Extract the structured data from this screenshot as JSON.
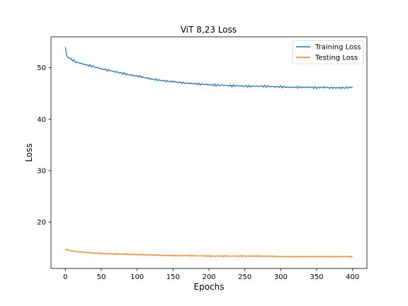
{
  "chart_data": {
    "type": "line",
    "title": "ViT 8,23 Loss",
    "xlabel": "Epochs",
    "ylabel": "Loss",
    "xlim": [
      -20,
      420
    ],
    "ylim": [
      11,
      56
    ],
    "xticks": [
      0,
      50,
      100,
      150,
      200,
      250,
      300,
      350,
      400
    ],
    "yticks": [
      20,
      30,
      40,
      50
    ],
    "grid": false,
    "legend_position": "top-right",
    "series": [
      {
        "name": "Training Loss",
        "color": "#1f77b4",
        "x": [
          0,
          1,
          2,
          5,
          10,
          15,
          20,
          25,
          30,
          35,
          40,
          45,
          50,
          60,
          70,
          80,
          90,
          100,
          110,
          120,
          130,
          140,
          150,
          160,
          170,
          180,
          190,
          200,
          210,
          220,
          230,
          240,
          250,
          260,
          270,
          280,
          290,
          300,
          310,
          320,
          330,
          340,
          350,
          360,
          370,
          380,
          390,
          400
        ],
        "y": [
          54.0,
          52.7,
          52.3,
          51.9,
          51.5,
          51.1,
          50.9,
          50.7,
          50.5,
          50.4,
          50.2,
          50.0,
          49.8,
          49.5,
          49.2,
          48.9,
          48.6,
          48.4,
          48.1,
          47.8,
          47.6,
          47.4,
          47.3,
          47.1,
          47.0,
          46.9,
          46.8,
          46.7,
          46.6,
          46.6,
          46.5,
          46.5,
          46.4,
          46.4,
          46.4,
          46.4,
          46.3,
          46.3,
          46.2,
          46.2,
          46.2,
          46.2,
          46.1,
          46.2,
          46.1,
          46.1,
          46.1,
          46.2
        ]
      },
      {
        "name": "Testing Loss",
        "color": "#ff7f0e",
        "x": [
          0,
          5,
          10,
          20,
          30,
          40,
          50,
          75,
          100,
          125,
          150,
          175,
          200,
          225,
          250,
          275,
          300,
          325,
          350,
          375,
          400
        ],
        "y": [
          14.8,
          14.5,
          14.4,
          14.2,
          14.1,
          14.0,
          13.9,
          13.8,
          13.7,
          13.6,
          13.5,
          13.5,
          13.4,
          13.4,
          13.4,
          13.4,
          13.3,
          13.3,
          13.3,
          13.3,
          13.3
        ]
      }
    ]
  }
}
